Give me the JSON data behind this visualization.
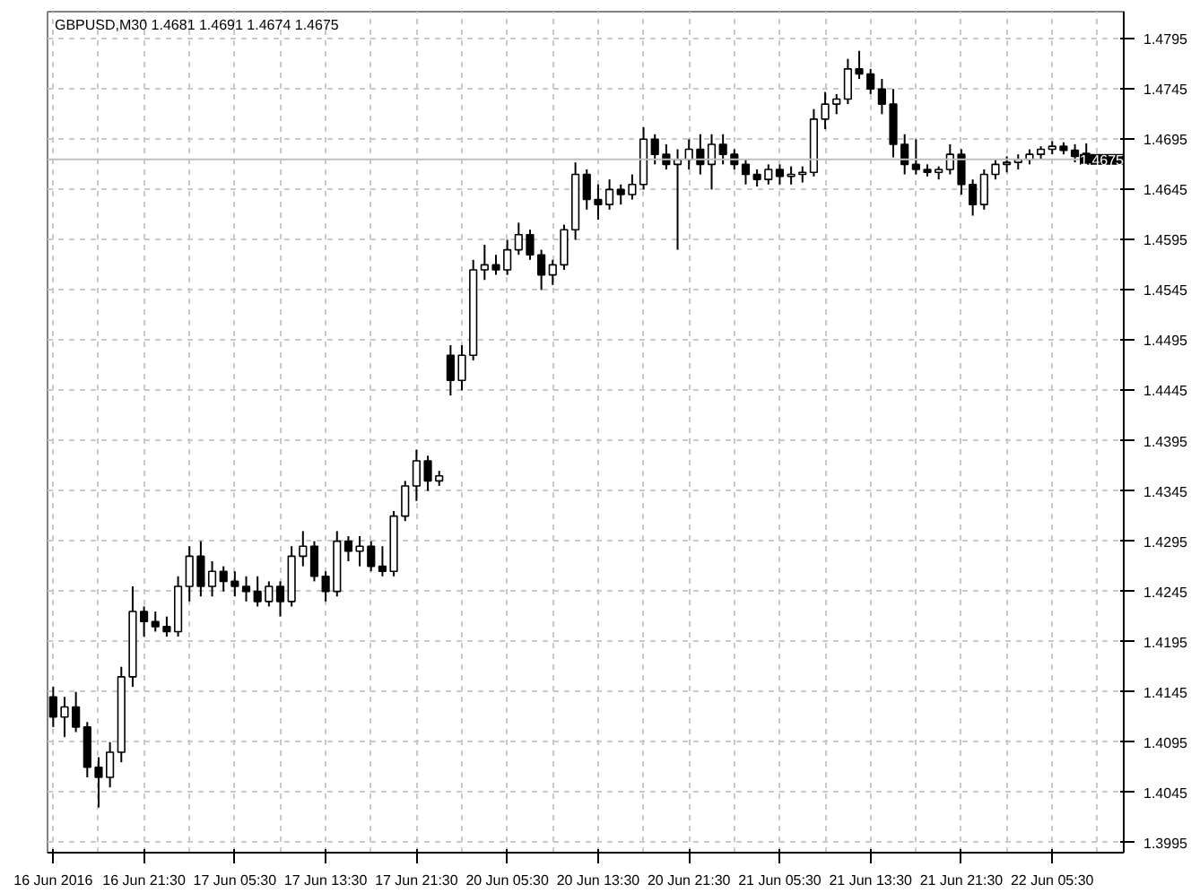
{
  "chart_data": {
    "type": "candlestick",
    "title": "GBPUSD,M30  1.4681 1.4691 1.4674 1.4675",
    "categories": [
      "16 Jun 2016",
      null,
      null,
      null,
      null,
      null,
      null,
      null,
      "16 Jun 21:30",
      null,
      null,
      null,
      null,
      null,
      null,
      null,
      "17 Jun 05:30",
      null,
      null,
      null,
      null,
      null,
      null,
      null,
      "17 Jun 13:30",
      null,
      null,
      null,
      null,
      null,
      null,
      null,
      "17 Jun 21:30",
      null,
      null,
      null,
      null,
      null,
      null,
      null,
      "20 Jun 05:30",
      null,
      null,
      null,
      null,
      null,
      null,
      null,
      "20 Jun 13:30",
      null,
      null,
      null,
      null,
      null,
      null,
      null,
      "20 Jun 21:30",
      null,
      null,
      null,
      null,
      null,
      null,
      null,
      "21 Jun 05:30",
      null,
      null,
      null,
      null,
      null,
      null,
      null,
      "21 Jun 13:30",
      null,
      null,
      null,
      null,
      null,
      null,
      null,
      "21 Jun 21:30",
      null,
      null,
      null,
      null,
      null,
      null,
      null,
      "22 Jun 05:30",
      null,
      null,
      null
    ],
    "ohlc": [
      [
        1.414,
        1.415,
        1.411,
        1.412
      ],
      [
        1.412,
        1.414,
        1.41,
        1.413
      ],
      [
        1.413,
        1.4145,
        1.4105,
        1.411
      ],
      [
        1.411,
        1.4115,
        1.406,
        1.407
      ],
      [
        1.407,
        1.408,
        1.403,
        1.406
      ],
      [
        1.406,
        1.4095,
        1.405,
        1.4085
      ],
      [
        1.4085,
        1.417,
        1.4075,
        1.416
      ],
      [
        1.416,
        1.425,
        1.415,
        1.4225
      ],
      [
        1.4225,
        1.423,
        1.42,
        1.4215
      ],
      [
        1.4215,
        1.4225,
        1.4205,
        1.421
      ],
      [
        1.421,
        1.422,
        1.42,
        1.4205
      ],
      [
        1.4205,
        1.426,
        1.42,
        1.425
      ],
      [
        1.425,
        1.429,
        1.4235,
        1.428
      ],
      [
        1.428,
        1.4295,
        1.424,
        1.425
      ],
      [
        1.425,
        1.4275,
        1.424,
        1.4265
      ],
      [
        1.4265,
        1.427,
        1.4245,
        1.4255
      ],
      [
        1.4255,
        1.4265,
        1.424,
        1.425
      ],
      [
        1.425,
        1.426,
        1.4235,
        1.4245
      ],
      [
        1.4245,
        1.426,
        1.423,
        1.4235
      ],
      [
        1.4235,
        1.4255,
        1.423,
        1.425
      ],
      [
        1.425,
        1.4255,
        1.422,
        1.4235
      ],
      [
        1.4235,
        1.429,
        1.423,
        1.428
      ],
      [
        1.428,
        1.4305,
        1.427,
        1.429
      ],
      [
        1.429,
        1.4295,
        1.4255,
        1.426
      ],
      [
        1.426,
        1.4265,
        1.4235,
        1.4245
      ],
      [
        1.4245,
        1.4305,
        1.424,
        1.4295
      ],
      [
        1.4295,
        1.43,
        1.4275,
        1.4285
      ],
      [
        1.4285,
        1.43,
        1.427,
        1.429
      ],
      [
        1.429,
        1.4295,
        1.4265,
        1.427
      ],
      [
        1.427,
        1.429,
        1.426,
        1.4265
      ],
      [
        1.4265,
        1.4325,
        1.426,
        1.432
      ],
      [
        1.432,
        1.4355,
        1.4315,
        1.435
      ],
      [
        1.435,
        1.4386,
        1.4335,
        1.4375
      ],
      [
        1.4375,
        1.438,
        1.4345,
        1.4355
      ],
      [
        1.4355,
        1.4365,
        1.435,
        1.436
      ],
      [
        1.448,
        1.449,
        1.444,
        1.4455
      ],
      [
        1.4455,
        1.449,
        1.4445,
        1.448
      ],
      [
        1.448,
        1.4575,
        1.4475,
        1.4565
      ],
      [
        1.4565,
        1.459,
        1.4555,
        1.457
      ],
      [
        1.457,
        1.458,
        1.456,
        1.4565
      ],
      [
        1.4565,
        1.4595,
        1.456,
        1.4585
      ],
      [
        1.4585,
        1.4612,
        1.458,
        1.46
      ],
      [
        1.46,
        1.4605,
        1.4575,
        1.458
      ],
      [
        1.458,
        1.4585,
        1.4545,
        1.456
      ],
      [
        1.456,
        1.4575,
        1.455,
        1.457
      ],
      [
        1.457,
        1.461,
        1.4565,
        1.4605
      ],
      [
        1.4605,
        1.4672,
        1.4595,
        1.466
      ],
      [
        1.466,
        1.4665,
        1.4625,
        1.4635
      ],
      [
        1.4635,
        1.465,
        1.4615,
        1.463
      ],
      [
        1.463,
        1.4655,
        1.4625,
        1.4645
      ],
      [
        1.4645,
        1.465,
        1.463,
        1.464
      ],
      [
        1.464,
        1.466,
        1.4635,
        1.465
      ],
      [
        1.465,
        1.4707,
        1.4645,
        1.4695
      ],
      [
        1.4695,
        1.47,
        1.467,
        1.468
      ],
      [
        1.468,
        1.469,
        1.4665,
        1.467
      ],
      [
        1.467,
        1.4685,
        1.4585,
        1.4675
      ],
      [
        1.4675,
        1.4695,
        1.4665,
        1.4685
      ],
      [
        1.4685,
        1.47,
        1.466,
        1.467
      ],
      [
        1.467,
        1.47,
        1.4645,
        1.469
      ],
      [
        1.469,
        1.47,
        1.467,
        1.468
      ],
      [
        1.468,
        1.4685,
        1.4665,
        1.467
      ],
      [
        1.467,
        1.4675,
        1.465,
        1.466
      ],
      [
        1.466,
        1.4665,
        1.4648,
        1.4655
      ],
      [
        1.4655,
        1.467,
        1.465,
        1.4665
      ],
      [
        1.4665,
        1.467,
        1.465,
        1.4658
      ],
      [
        1.4658,
        1.4668,
        1.465,
        1.466
      ],
      [
        1.466,
        1.4668,
        1.4652,
        1.4662
      ],
      [
        1.4662,
        1.4725,
        1.4658,
        1.4715
      ],
      [
        1.4715,
        1.4742,
        1.4705,
        1.473
      ],
      [
        1.473,
        1.474,
        1.472,
        1.4735
      ],
      [
        1.4735,
        1.4775,
        1.473,
        1.4765
      ],
      [
        1.4765,
        1.4783,
        1.4755,
        1.476
      ],
      [
        1.476,
        1.4765,
        1.474,
        1.4745
      ],
      [
        1.4745,
        1.4755,
        1.472,
        1.473
      ],
      [
        1.473,
        1.4745,
        1.4677,
        1.469
      ],
      [
        1.469,
        1.47,
        1.466,
        1.467
      ],
      [
        1.467,
        1.4695,
        1.466,
        1.4665
      ],
      [
        1.4665,
        1.467,
        1.4658,
        1.4662
      ],
      [
        1.4662,
        1.4668,
        1.4655,
        1.4665
      ],
      [
        1.4665,
        1.469,
        1.466,
        1.468
      ],
      [
        1.468,
        1.4685,
        1.464,
        1.465
      ],
      [
        1.465,
        1.4655,
        1.4619,
        1.463
      ],
      [
        1.463,
        1.4665,
        1.4625,
        1.466
      ],
      [
        1.466,
        1.4675,
        1.4655,
        1.467
      ],
      [
        1.467,
        1.4678,
        1.4662,
        1.4672
      ],
      [
        1.4672,
        1.468,
        1.4665,
        1.4675
      ],
      [
        1.4675,
        1.4685,
        1.467,
        1.468
      ],
      [
        1.468,
        1.4688,
        1.4675,
        1.4685
      ],
      [
        1.4685,
        1.4693,
        1.468,
        1.4688
      ],
      [
        1.4688,
        1.4692,
        1.468,
        1.4684
      ],
      [
        1.4684,
        1.469,
        1.4672,
        1.4678
      ],
      [
        1.4681,
        1.4691,
        1.4674,
        1.4675
      ]
    ],
    "ylim": [
      1.3985,
      1.4822
    ],
    "yticks": [
      1.3995,
      1.4045,
      1.4095,
      1.4145,
      1.4195,
      1.4245,
      1.4295,
      1.4345,
      1.4395,
      1.4445,
      1.4495,
      1.4545,
      1.4595,
      1.4645,
      1.4695,
      1.4745,
      1.4795
    ],
    "grid": true,
    "ref_lines": [
      {
        "axis": "y",
        "value": 1.4675,
        "label": "1.4675",
        "color": "#c0c0c0"
      }
    ]
  }
}
